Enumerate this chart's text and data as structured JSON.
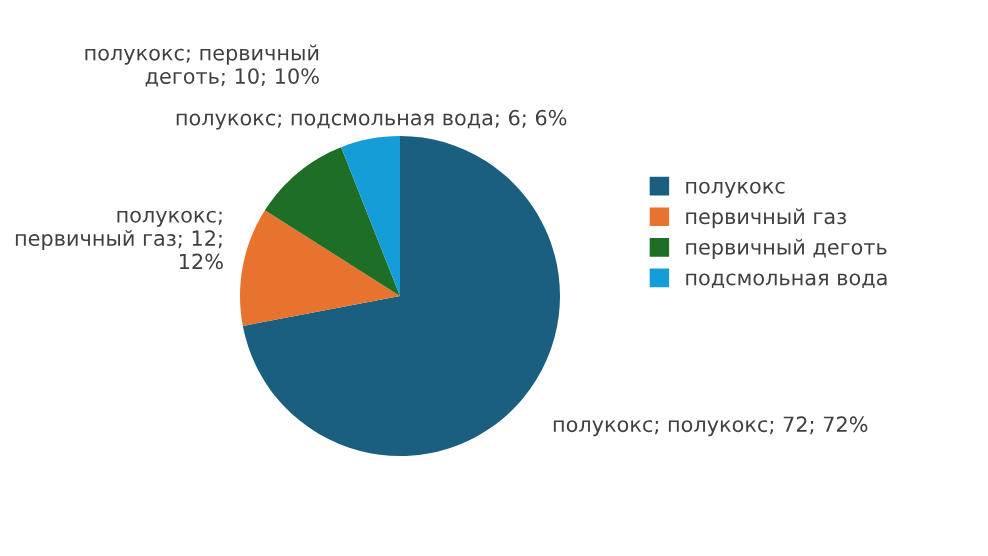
{
  "chart_data": {
    "type": "pie",
    "categories": [
      "полукокс",
      "первичный газ",
      "первичный деготь",
      "подсмольная вода"
    ],
    "values": [
      72,
      12,
      10,
      6
    ],
    "colors": [
      "#1a5f80",
      "#e8732f",
      "#1f6e26",
      "#159dd8"
    ],
    "value_labels": [
      "полукокс; полукокс; 72; 72%",
      "полукокс; первичный газ; 12; 12%",
      "полукокс; первичный деготь; 10; 10%",
      "полукокс; подсмольная вода; 6; 6%"
    ],
    "legend": "right"
  }
}
